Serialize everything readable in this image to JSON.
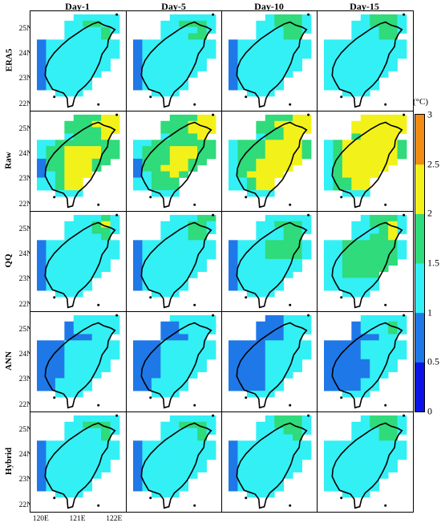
{
  "columns": [
    "Day-1",
    "Day-5",
    "Day-10",
    "Day-15"
  ],
  "rows": [
    "ERA5",
    "Raw",
    "QQ",
    "ANN",
    "Hybrid"
  ],
  "lat_ticks": [
    "25N",
    "24N",
    "23N",
    "22N"
  ],
  "lon_ticks": [
    "120E",
    "121E",
    "122E"
  ],
  "colorbar": {
    "unit": "(°C)",
    "ticks": [
      "0",
      "0.5",
      "1",
      "1.5",
      "2",
      "2.5",
      "3"
    ],
    "colors": [
      "#0a14e6",
      "#1f78e8",
      "#33f0f5",
      "#2fdb7a",
      "#f2f21a",
      "#f08c14"
    ]
  },
  "chart_data": {
    "type": "heatmap",
    "title": "",
    "unit": "(°C)",
    "value_range": [
      0,
      3
    ],
    "color_levels": [
      0,
      0.5,
      1,
      1.5,
      2,
      2.5,
      3
    ],
    "grid_lon": [
      120.0,
      120.25,
      120.5,
      120.75,
      121.0,
      121.25,
      121.5,
      121.75,
      122.0
    ],
    "grid_lat": [
      25.5,
      25.25,
      25.0,
      24.75,
      24.5,
      24.25,
      24.0,
      23.75,
      23.5,
      23.25,
      23.0,
      22.75,
      22.5,
      22.25,
      22.0
    ],
    "columns": [
      "Day-1",
      "Day-5",
      "Day-10",
      "Day-15"
    ],
    "rows": [
      "ERA5",
      "Raw",
      "QQ",
      "ANN",
      "Hybrid"
    ],
    "panels": [
      [
        {
          "column": "Day-1",
          "grid": [
            "....11111",
            "...112211",
            "...111121",
            "...11112.",
            "011111111",
            "011111111",
            "011111111",
            "01111111.",
            "01111111.",
            "0111111..",
            "011111...",
            "011111...",
            "..111....",
            ".........",
            "........."
          ]
        },
        {
          "column": "Day-5",
          "grid": [
            "....11111",
            "...112221",
            "...111121",
            "...11122.",
            "011111111",
            "011111111",
            "011111111",
            "01111111.",
            "01111111.",
            "0111111..",
            "011111...",
            "011111...",
            "..111....",
            ".........",
            "........."
          ]
        },
        {
          "column": "Day-10",
          "grid": [
            "....12221",
            "...112221",
            "...111221",
            "...11122.",
            "011111111",
            "011111111",
            "011111111",
            "01111111.",
            "01111111.",
            "0111111..",
            "011111...",
            "011111...",
            "..111....",
            ".........",
            "........."
          ]
        },
        {
          "column": "Day-15",
          "grid": [
            "....12221",
            "...112221",
            "...111221",
            "...11122.",
            "111111111",
            "111111111",
            "111111111",
            "11111111.",
            "11111111.",
            "1111111..",
            "111111...",
            "111111...",
            "..111....",
            ".........",
            "........."
          ]
        }
      ],
      [
        {
          "column": "Day-1",
          "grid": [
            "....22233",
            "...222333",
            "...222233",
            "...12223.",
            "112222222",
            "122333322",
            "122333322",
            "02233322.",
            "0223332..",
            "012333...",
            "11233....",
            "11233....",
            "..111....",
            ".........",
            "........."
          ]
        },
        {
          "column": "Day-5",
          "grid": [
            "....22233",
            "...222333",
            "...222333",
            "...12223.",
            "112222222",
            "122233322",
            "122233322",
            "02223322.",
            "0223332..",
            "012232...",
            "11222....",
            "11222....",
            "..111....",
            ".........",
            "........."
          ]
        },
        {
          "column": "Day-10",
          "grid": [
            "....22233",
            "...223333",
            "...222333",
            "...12233.",
            "122233332",
            "122233332",
            "122233332",
            "12233333.",
            "1223333..",
            "123333...",
            "11233....",
            "11233....",
            "..111....",
            ".........",
            "........."
          ]
        },
        {
          "column": "Day-15",
          "grid": [
            "....33333",
            "...333333",
            "...333333",
            "...23333.",
            "123333332",
            "123333332",
            "123333332",
            "12333333.",
            "1233333..",
            "123333...",
            "12233....",
            "12233....",
            "..111....",
            ".........",
            "........."
          ]
        }
      ],
      [
        {
          "column": "Day-1",
          "grid": [
            "....11121",
            "...111231",
            "...111221",
            "...11112.",
            "011111111",
            "011111111",
            "011111111",
            "01111111.",
            "01111111.",
            "0111111..",
            "011111...",
            "011111...",
            "..111....",
            ".........",
            "........."
          ]
        },
        {
          "column": "Day-5",
          "grid": [
            "....11122",
            "...111221",
            "...111221",
            "...11122.",
            "011111111",
            "011111111",
            "011111111",
            "01111111.",
            "01111111.",
            "0111111..",
            "011111...",
            "011111...",
            "..111....",
            ".........",
            "........."
          ]
        },
        {
          "column": "Day-10",
          "grid": [
            "....11111",
            "...112221",
            "...111221",
            "...11122.",
            "011122221",
            "011122221",
            "011122221",
            "01111111.",
            "01111111.",
            "0111111..",
            "011111...",
            "011111...",
            "..111....",
            ".........",
            "........."
          ]
        },
        {
          "column": "Day-15",
          "grid": [
            "....12221",
            "...112231",
            "...111231",
            "...11223.",
            "112222221",
            "112222221",
            "112222221",
            "11222222.",
            "1122222..",
            "112222...",
            "111111...",
            "111111...",
            "..111....",
            ".........",
            "........."
          ]
        }
      ],
      [
        {
          "column": "Day-1",
          "grid": [
            "....11111",
            "...011111",
            "...011111",
            "...00011.",
            "000111111",
            "000111111",
            "000111111",
            "00011111.",
            "00011111.",
            "0001111..",
            "001111...",
            "001111...",
            "..111....",
            ".........",
            "........."
          ]
        },
        {
          "column": "Day-5",
          "grid": [
            "....11111",
            "...001111",
            "...001111",
            "...00011.",
            "000111111",
            "000111111",
            "000111111",
            "00011111.",
            "00011111.",
            "0001111..",
            "001111...",
            "001111...",
            "..111....",
            ".........",
            "........."
          ]
        },
        {
          "column": "Day-10",
          "grid": [
            "....00111",
            "...000111",
            "...000111",
            "...00011.",
            "000011111",
            "000011111",
            "000011111",
            "00001111.",
            "00001111.",
            "0000111..",
            "000011...",
            "000011...",
            "..111....",
            ".........",
            "........."
          ]
        },
        {
          "column": "Day-15",
          "grid": [
            "....11111",
            "...011121",
            "...011121",
            "...00011.",
            "000011111",
            "000011111",
            "000011111",
            "00000111.",
            "00000111.",
            "0000011..",
            "000011...",
            "000011...",
            "..111....",
            ".........",
            "........."
          ]
        }
      ],
      [
        {
          "column": "Day-1",
          "grid": [
            "....11111",
            "...112221",
            "...111121",
            "...11112.",
            "011111111",
            "011111111",
            "011111111",
            "01111111.",
            "01111111.",
            "0111111..",
            "011111...",
            "011111...",
            "..111....",
            ".........",
            "........."
          ]
        },
        {
          "column": "Day-5",
          "grid": [
            "....11111",
            "...112221",
            "...111121",
            "...11112.",
            "011111111",
            "011111111",
            "011111111",
            "01111111.",
            "01111111.",
            "0111111..",
            "011111...",
            "011111...",
            "..111....",
            ".........",
            "........."
          ]
        },
        {
          "column": "Day-10",
          "grid": [
            "....12221",
            "...112221",
            "...111221",
            "...11112.",
            "011111111",
            "011111111",
            "011111111",
            "01111111.",
            "01111111.",
            "0111111..",
            "011111...",
            "011111...",
            "..111....",
            ".........",
            "........."
          ]
        },
        {
          "column": "Day-15",
          "grid": [
            "....12221",
            "...112221",
            "...111221",
            "...11122.",
            "111111111",
            "111111111",
            "111111111",
            "11111111.",
            "11111111.",
            "1111111..",
            "111111...",
            "111111...",
            "..111....",
            ".........",
            "........."
          ]
        }
      ]
    ],
    "legend": "colorbar-right"
  }
}
